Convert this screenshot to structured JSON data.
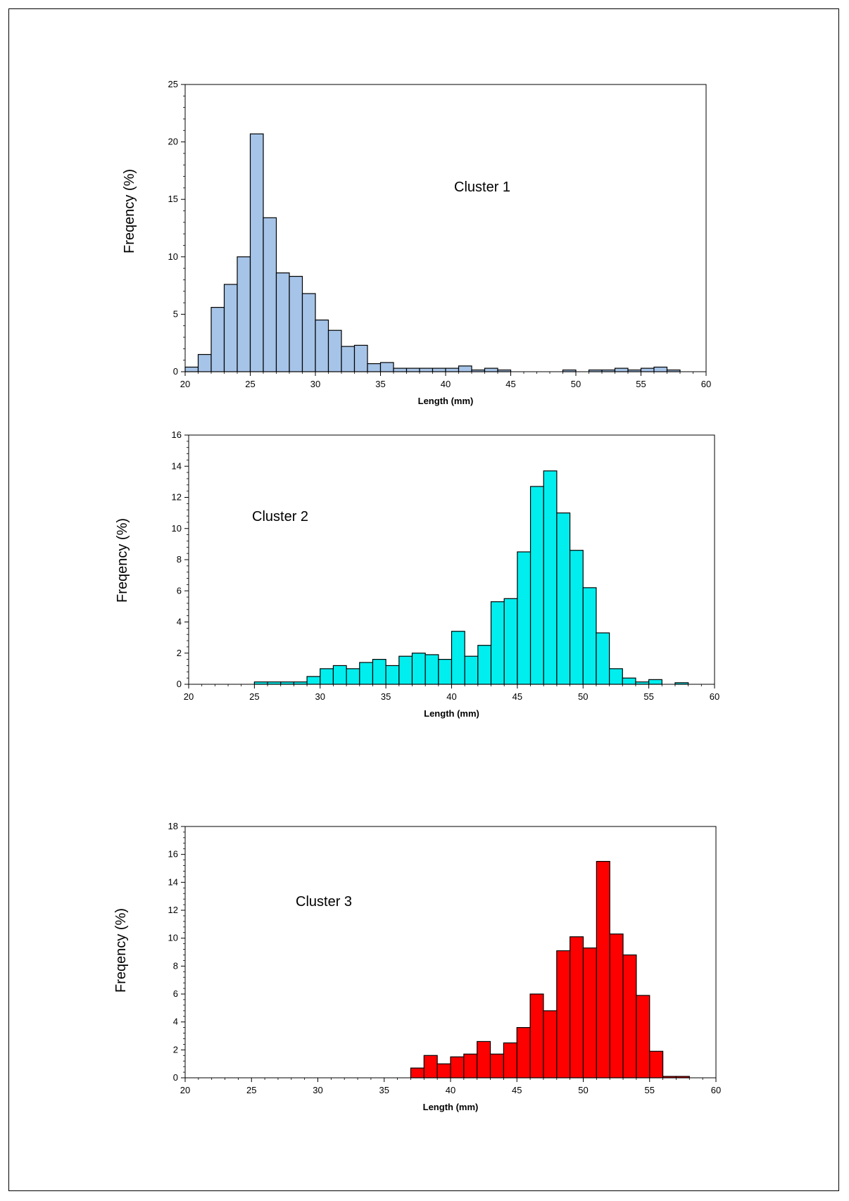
{
  "chart_data": [
    {
      "type": "bar",
      "annotation": "Cluster 1",
      "xlabel": "Length (mm)",
      "ylabel": "Freqency  (%)",
      "xlim": [
        20,
        60
      ],
      "ylim": [
        0,
        25
      ],
      "x_ticks": [
        20,
        25,
        30,
        35,
        40,
        45,
        50,
        55,
        60
      ],
      "y_ticks": [
        0,
        5,
        10,
        15,
        20,
        25
      ],
      "bin_width": 1,
      "bar_color": "#a6c4e8",
      "bins": [
        {
          "x": 20.5,
          "y": 0.4
        },
        {
          "x": 21.5,
          "y": 1.5
        },
        {
          "x": 22.5,
          "y": 5.6
        },
        {
          "x": 23.5,
          "y": 7.6
        },
        {
          "x": 24.5,
          "y": 10.0
        },
        {
          "x": 25.5,
          "y": 20.7
        },
        {
          "x": 26.5,
          "y": 13.4
        },
        {
          "x": 27.5,
          "y": 8.6
        },
        {
          "x": 28.5,
          "y": 8.3
        },
        {
          "x": 29.5,
          "y": 6.8
        },
        {
          "x": 30.5,
          "y": 4.5
        },
        {
          "x": 31.5,
          "y": 3.6
        },
        {
          "x": 32.5,
          "y": 2.2
        },
        {
          "x": 33.5,
          "y": 2.3
        },
        {
          "x": 34.5,
          "y": 0.7
        },
        {
          "x": 35.5,
          "y": 0.8
        },
        {
          "x": 36.5,
          "y": 0.3
        },
        {
          "x": 37.5,
          "y": 0.3
        },
        {
          "x": 38.5,
          "y": 0.3
        },
        {
          "x": 39.5,
          "y": 0.3
        },
        {
          "x": 40.5,
          "y": 0.3
        },
        {
          "x": 41.5,
          "y": 0.5
        },
        {
          "x": 42.5,
          "y": 0.15
        },
        {
          "x": 43.5,
          "y": 0.3
        },
        {
          "x": 44.5,
          "y": 0.15
        },
        {
          "x": 49.5,
          "y": 0.15
        },
        {
          "x": 51.5,
          "y": 0.15
        },
        {
          "x": 52.5,
          "y": 0.15
        },
        {
          "x": 53.5,
          "y": 0.3
        },
        {
          "x": 54.5,
          "y": 0.15
        },
        {
          "x": 55.5,
          "y": 0.3
        },
        {
          "x": 56.5,
          "y": 0.4
        },
        {
          "x": 57.5,
          "y": 0.15
        }
      ]
    },
    {
      "type": "bar",
      "annotation": "Cluster 2",
      "xlabel": "Length (mm)",
      "ylabel": "Freqency  (%)",
      "xlim": [
        20,
        60
      ],
      "ylim": [
        0,
        16
      ],
      "x_ticks": [
        20,
        25,
        30,
        35,
        40,
        45,
        50,
        55,
        60
      ],
      "y_ticks": [
        0,
        2,
        4,
        6,
        8,
        10,
        12,
        14,
        16
      ],
      "bin_width": 1,
      "bar_color": "#00eeee",
      "bins": [
        {
          "x": 25.5,
          "y": 0.15
        },
        {
          "x": 26.5,
          "y": 0.15
        },
        {
          "x": 27.5,
          "y": 0.15
        },
        {
          "x": 28.5,
          "y": 0.15
        },
        {
          "x": 29.5,
          "y": 0.5
        },
        {
          "x": 30.5,
          "y": 1.0
        },
        {
          "x": 31.5,
          "y": 1.2
        },
        {
          "x": 32.5,
          "y": 1.0
        },
        {
          "x": 33.5,
          "y": 1.4
        },
        {
          "x": 34.5,
          "y": 1.6
        },
        {
          "x": 35.5,
          "y": 1.2
        },
        {
          "x": 36.5,
          "y": 1.8
        },
        {
          "x": 37.5,
          "y": 2.0
        },
        {
          "x": 38.5,
          "y": 1.9
        },
        {
          "x": 39.5,
          "y": 1.6
        },
        {
          "x": 40.5,
          "y": 3.4
        },
        {
          "x": 41.5,
          "y": 1.8
        },
        {
          "x": 42.5,
          "y": 2.5
        },
        {
          "x": 43.5,
          "y": 5.3
        },
        {
          "x": 44.5,
          "y": 5.5
        },
        {
          "x": 45.5,
          "y": 8.5
        },
        {
          "x": 46.5,
          "y": 12.7
        },
        {
          "x": 47.5,
          "y": 13.7
        },
        {
          "x": 48.5,
          "y": 11.0
        },
        {
          "x": 49.5,
          "y": 8.6
        },
        {
          "x": 50.5,
          "y": 6.2
        },
        {
          "x": 51.5,
          "y": 3.3
        },
        {
          "x": 52.5,
          "y": 1.0
        },
        {
          "x": 53.5,
          "y": 0.4
        },
        {
          "x": 54.5,
          "y": 0.15
        },
        {
          "x": 55.5,
          "y": 0.3
        },
        {
          "x": 57.5,
          "y": 0.1
        }
      ]
    },
    {
      "type": "bar",
      "annotation": "Cluster 3",
      "xlabel": "Length (mm)",
      "ylabel": "Freqency  (%)",
      "xlim": [
        20,
        60
      ],
      "ylim": [
        0,
        18
      ],
      "x_ticks": [
        20,
        25,
        30,
        35,
        40,
        45,
        50,
        55,
        60
      ],
      "y_ticks": [
        0,
        2,
        4,
        6,
        8,
        10,
        12,
        14,
        16,
        18
      ],
      "bin_width": 1,
      "bar_color": "#ff0000",
      "bins": [
        {
          "x": 37.5,
          "y": 0.7
        },
        {
          "x": 38.5,
          "y": 1.6
        },
        {
          "x": 39.5,
          "y": 1.0
        },
        {
          "x": 40.5,
          "y": 1.5
        },
        {
          "x": 41.5,
          "y": 1.7
        },
        {
          "x": 42.5,
          "y": 2.6
        },
        {
          "x": 43.5,
          "y": 1.7
        },
        {
          "x": 44.5,
          "y": 2.5
        },
        {
          "x": 45.5,
          "y": 3.6
        },
        {
          "x": 46.5,
          "y": 6.0
        },
        {
          "x": 47.5,
          "y": 4.8
        },
        {
          "x": 48.5,
          "y": 9.1
        },
        {
          "x": 49.5,
          "y": 10.1
        },
        {
          "x": 50.5,
          "y": 9.3
        },
        {
          "x": 51.5,
          "y": 15.5
        },
        {
          "x": 52.5,
          "y": 10.3
        },
        {
          "x": 53.5,
          "y": 8.8
        },
        {
          "x": 54.5,
          "y": 5.9
        },
        {
          "x": 55.5,
          "y": 1.9
        },
        {
          "x": 56.5,
          "y": 0.1
        },
        {
          "x": 57.5,
          "y": 0.1
        }
      ]
    }
  ]
}
